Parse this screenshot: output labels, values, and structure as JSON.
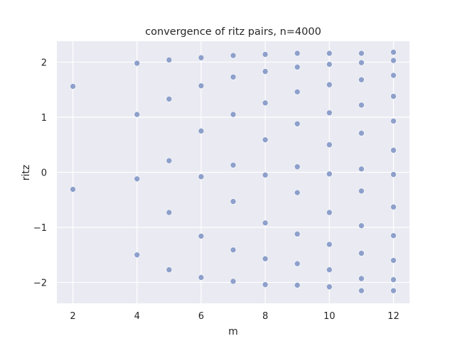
{
  "chart_data": {
    "type": "scatter",
    "title": "convergence of ritz pairs, n=4000",
    "xlabel": "m",
    "ylabel": "ritz",
    "xlim": [
      1.5,
      12.5
    ],
    "ylim": [
      -2.38,
      2.38
    ],
    "xticks": [
      2,
      4,
      6,
      8,
      10,
      12
    ],
    "yticks": [
      -2,
      -1,
      0,
      1,
      2
    ],
    "xtick_labels": [
      "2",
      "4",
      "6",
      "8",
      "10",
      "12"
    ],
    "ytick_labels": [
      "−2",
      "−1",
      "0",
      "1",
      "2"
    ],
    "grid": true,
    "background": "#eaeaf2",
    "grid_color": "#ffffff",
    "marker_color": "#8da0cb",
    "series": [
      {
        "points": [
          [
            2,
            1.56
          ],
          [
            2,
            -0.31
          ],
          [
            4,
            1.98
          ],
          [
            4,
            1.05
          ],
          [
            4,
            -0.12
          ],
          [
            4,
            -1.5
          ],
          [
            5,
            2.04
          ],
          [
            5,
            1.33
          ],
          [
            5,
            0.21
          ],
          [
            5,
            -0.73
          ],
          [
            5,
            -1.77
          ],
          [
            6,
            2.08
          ],
          [
            6,
            1.57
          ],
          [
            6,
            0.75
          ],
          [
            6,
            -0.08
          ],
          [
            6,
            -1.16
          ],
          [
            6,
            -1.91
          ],
          [
            7,
            2.12
          ],
          [
            7,
            1.73
          ],
          [
            7,
            1.05
          ],
          [
            7,
            0.13
          ],
          [
            7,
            -0.53
          ],
          [
            7,
            -1.41
          ],
          [
            7,
            -1.98
          ],
          [
            8,
            2.14
          ],
          [
            8,
            1.83
          ],
          [
            8,
            1.26
          ],
          [
            8,
            0.59
          ],
          [
            8,
            -0.05
          ],
          [
            8,
            -0.92
          ],
          [
            8,
            -1.57
          ],
          [
            8,
            -2.04
          ],
          [
            9,
            2.16
          ],
          [
            9,
            1.91
          ],
          [
            9,
            1.46
          ],
          [
            9,
            0.88
          ],
          [
            9,
            0.1
          ],
          [
            9,
            -0.37
          ],
          [
            9,
            -1.12
          ],
          [
            9,
            -1.66
          ],
          [
            9,
            -2.05
          ],
          [
            10,
            2.16
          ],
          [
            10,
            1.96
          ],
          [
            10,
            1.59
          ],
          [
            10,
            1.08
          ],
          [
            10,
            0.5
          ],
          [
            10,
            -0.03
          ],
          [
            10,
            -0.73
          ],
          [
            10,
            -1.31
          ],
          [
            10,
            -1.77
          ],
          [
            10,
            -2.08
          ],
          [
            11,
            2.16
          ],
          [
            11,
            1.99
          ],
          [
            11,
            1.68
          ],
          [
            11,
            1.22
          ],
          [
            11,
            0.71
          ],
          [
            11,
            0.06
          ],
          [
            11,
            -0.34
          ],
          [
            11,
            -0.97
          ],
          [
            11,
            -1.47
          ],
          [
            11,
            -1.93
          ],
          [
            11,
            -2.15
          ],
          [
            12,
            2.18
          ],
          [
            12,
            2.03
          ],
          [
            12,
            1.76
          ],
          [
            12,
            1.38
          ],
          [
            12,
            0.93
          ],
          [
            12,
            0.4
          ],
          [
            12,
            -0.04
          ],
          [
            12,
            -0.63
          ],
          [
            12,
            -1.15
          ],
          [
            12,
            -1.6
          ],
          [
            12,
            -1.95
          ],
          [
            12,
            -2.15
          ]
        ]
      }
    ]
  }
}
